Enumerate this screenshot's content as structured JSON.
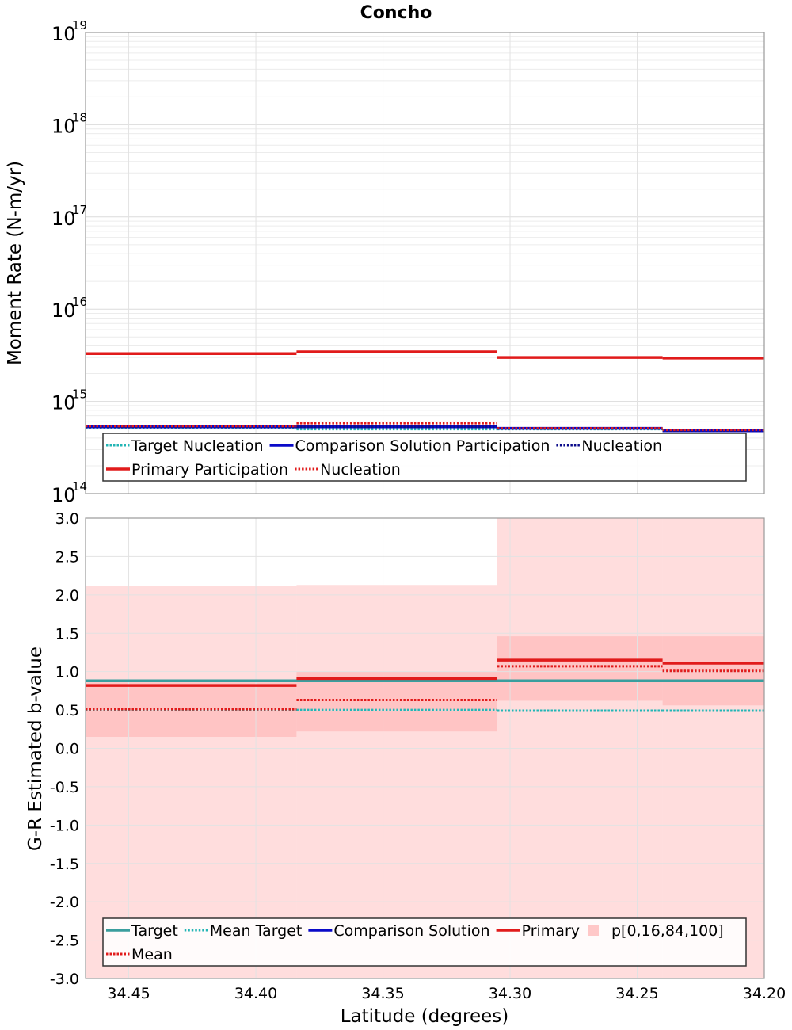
{
  "chart_data": {
    "title": "Concho",
    "xlabel": "Latitude (degrees)",
    "x_ticks": [
      "34.45",
      "34.40",
      "34.35",
      "34.30",
      "34.25",
      "34.20"
    ],
    "x_tick_values": [
      34.45,
      34.4,
      34.35,
      34.3,
      34.25,
      34.2
    ],
    "xlim": [
      34.467,
      34.2
    ],
    "x_reversed": true,
    "bins": [
      [
        34.467,
        34.384
      ],
      [
        34.384,
        34.305
      ],
      [
        34.305,
        34.24
      ],
      [
        34.24,
        34.2
      ]
    ],
    "panels": [
      {
        "type": "line",
        "ylabel": "Moment Rate (N-m/yr)",
        "y_scale": "log",
        "ylim": [
          100000000000000.0,
          1e+19
        ],
        "y_ticks": [
          {
            "base": "10",
            "exp": "14",
            "value": 100000000000000.0
          },
          {
            "base": "10",
            "exp": "15",
            "value": 1000000000000000.0
          },
          {
            "base": "10",
            "exp": "16",
            "value": 1e+16
          },
          {
            "base": "10",
            "exp": "17",
            "value": 1e+17
          },
          {
            "base": "10",
            "exp": "18",
            "value": 1e+18
          },
          {
            "base": "10",
            "exp": "19",
            "value": 1e+19
          }
        ],
        "grid": true,
        "series": [
          {
            "name": "Target Nucleation",
            "color": "#22b5b5",
            "style": "dotted",
            "values": [
              520000000000000.0,
              500000000000000.0,
              500000000000000.0,
              490000000000000.0
            ]
          },
          {
            "name": "Comparison Solution Participation",
            "color": "#0a0ac8",
            "style": "solid",
            "values": [
              530000000000000.0,
              530000000000000.0,
              510000000000000.0,
              480000000000000.0
            ]
          },
          {
            "name": "Nucleation",
            "color": "#0a0a8a",
            "style": "dotted",
            "values": [
              530000000000000.0,
              530000000000000.0,
              510000000000000.0,
              480000000000000.0
            ]
          },
          {
            "name": "Primary Participation",
            "color": "#e11b1b",
            "style": "solid",
            "values": [
              3300000000000000.0,
              3450000000000000.0,
              3000000000000000.0,
              2950000000000000.0
            ]
          },
          {
            "name": "Nucleation",
            "color": "#e11b1b",
            "style": "dotted",
            "values": [
              540000000000000.0,
              580000000000000.0,
              510000000000000.0,
              490000000000000.0
            ]
          }
        ],
        "legend": {
          "placement": "bottom",
          "rows": [
            [
              {
                "label": "Target Nucleation",
                "color": "#22b5b5",
                "style": "dotted"
              },
              {
                "label": "Comparison Solution Participation",
                "color": "#0a0ac8",
                "style": "solid"
              },
              {
                "label": "Nucleation",
                "color": "#0a0a8a",
                "style": "dotted"
              }
            ],
            [
              {
                "label": "Primary Participation",
                "color": "#e11b1b",
                "style": "solid"
              },
              {
                "label": "Nucleation",
                "color": "#e11b1b",
                "style": "dotted"
              }
            ]
          ]
        }
      },
      {
        "type": "line",
        "ylabel": "G-R Estimated b-value",
        "y_scale": "linear",
        "ylim": [
          -3.0,
          3.0
        ],
        "y_ticks": [
          "-3.0",
          "-2.5",
          "-2.0",
          "-1.5",
          "-1.0",
          "-0.5",
          "0.0",
          "0.5",
          "1.0",
          "1.5",
          "2.0",
          "2.5",
          "3.0"
        ],
        "grid": true,
        "bands": [
          {
            "name": "p[0,16,84,100]",
            "color": "#ffb4b4",
            "lower": [
              -3.0,
              -3.0,
              -3.0,
              -3.0
            ],
            "upper": [
              2.12,
              2.13,
              3.0,
              3.0
            ],
            "opacity": 0.45
          },
          {
            "name": "p[16,84]",
            "color": "#ffb4b4",
            "lower": [
              0.15,
              0.22,
              0.62,
              0.56
            ],
            "upper": [
              0.86,
              1.0,
              1.46,
              1.46
            ],
            "opacity": 0.6
          }
        ],
        "series": [
          {
            "name": "Target",
            "color": "#3a9e9e",
            "style": "solid",
            "values": [
              0.88,
              0.88,
              0.88,
              0.88
            ]
          },
          {
            "name": "Mean Target",
            "color": "#22b5b5",
            "style": "dotted",
            "values": [
              0.5,
              0.5,
              0.49,
              0.49
            ]
          },
          {
            "name": "Primary",
            "color": "#e11b1b",
            "style": "solid",
            "values": [
              0.82,
              0.91,
              1.15,
              1.11
            ]
          },
          {
            "name": "Mean",
            "color": "#e11b1b",
            "style": "dotted",
            "values": [
              0.51,
              0.63,
              1.07,
              1.01
            ]
          }
        ],
        "legend": {
          "placement": "bottom",
          "rows": [
            [
              {
                "label": "Target",
                "color": "#3a9e9e",
                "style": "solid"
              },
              {
                "label": "Mean Target",
                "color": "#22b5b5",
                "style": "dotted"
              },
              {
                "label": "Comparison Solution",
                "color": "#0a0ac8",
                "style": "solid"
              },
              {
                "label": "Primary",
                "color": "#e11b1b",
                "style": "solid"
              },
              {
                "label": "p[0,16,84,100]",
                "color": "#ffc8c8",
                "style": "box"
              }
            ],
            [
              {
                "label": "Mean",
                "color": "#e11b1b",
                "style": "dotted"
              }
            ]
          ]
        }
      }
    ]
  }
}
